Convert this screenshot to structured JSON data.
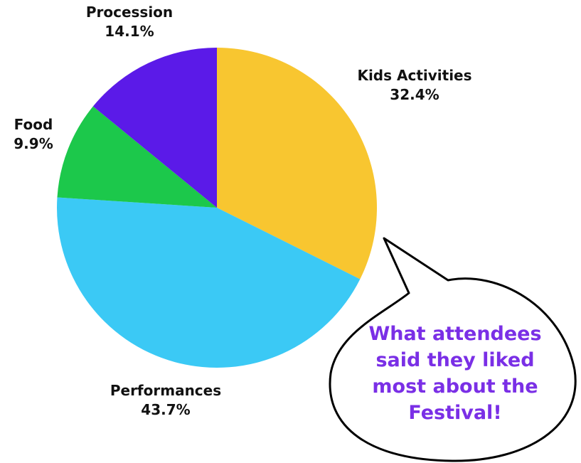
{
  "chart_data": {
    "type": "pie",
    "title": "",
    "start_angle_deg": 0,
    "direction": "clockwise",
    "slices": [
      {
        "label": "Kids Activities",
        "value": 32.4,
        "value_label": "32.4%",
        "color": "#F8C630"
      },
      {
        "label": "Performances",
        "value": 43.7,
        "value_label": "43.7%",
        "color": "#3BC9F5"
      },
      {
        "label": "Food",
        "value": 9.9,
        "value_label": "9.9%",
        "color": "#1CC84B"
      },
      {
        "label": "Procession",
        "value": 14.1,
        "value_label": "14.1%",
        "color": "#5B1AE8"
      }
    ]
  },
  "callout": {
    "lines": [
      "What attendees",
      "said they liked",
      "most about the",
      "Festival!"
    ],
    "text_color": "#7A2FE6",
    "fill": "#ffffff",
    "stroke": "#000000"
  }
}
